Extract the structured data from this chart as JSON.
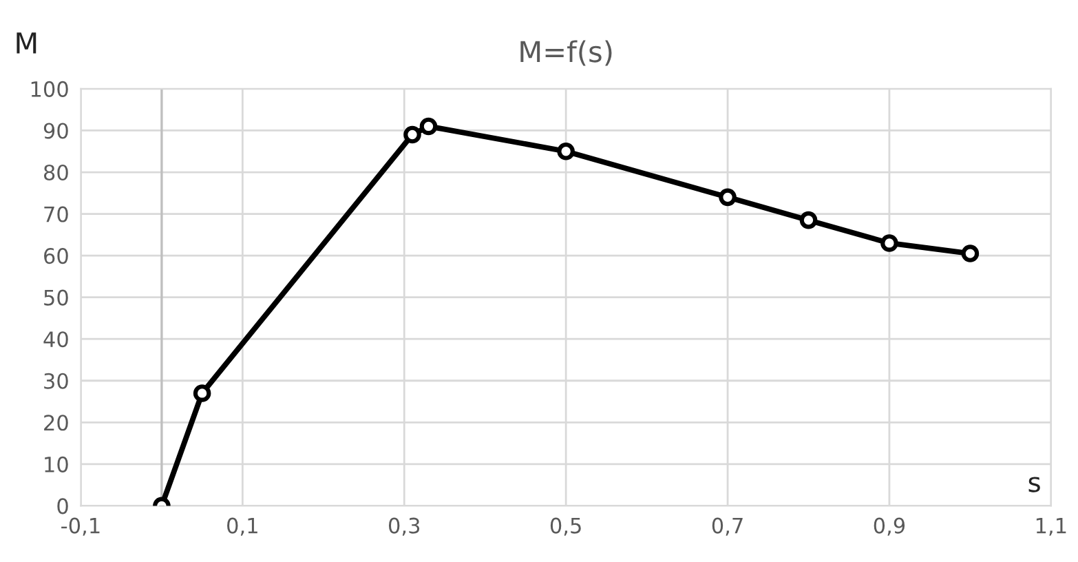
{
  "chart_data": {
    "type": "line",
    "title": "M=f(s)",
    "xlabel": "s",
    "ylabel": "M",
    "x": [
      0,
      0.05,
      0.31,
      0.33,
      0.5,
      0.7,
      0.8,
      0.9,
      1.0
    ],
    "series": [
      {
        "color": "#000000",
        "values": [
          0,
          27,
          89,
          91,
          85,
          74,
          68.5,
          63,
          60.5
        ]
      }
    ],
    "xlim": [
      -0.1,
      1.1
    ],
    "xticks": [
      {
        "value": -0.1,
        "label": "-0,1"
      },
      {
        "value": 0.1,
        "label": "0,1"
      },
      {
        "value": 0.3,
        "label": "0,3"
      },
      {
        "value": 0.5,
        "label": "0,5"
      },
      {
        "value": 0.7,
        "label": "0,7"
      },
      {
        "value": 0.9,
        "label": "0,9"
      },
      {
        "value": 1.1,
        "label": "1,1"
      }
    ],
    "ylim": [
      0,
      100
    ],
    "yticks": [
      0,
      10,
      20,
      30,
      40,
      50,
      60,
      70,
      80,
      90,
      100
    ],
    "ref_lines": [
      {
        "axis": "x",
        "value": 0,
        "color": "#bfbfbf"
      }
    ],
    "grid": true,
    "legend": false,
    "marker": "circle",
    "line_style": "solid"
  }
}
